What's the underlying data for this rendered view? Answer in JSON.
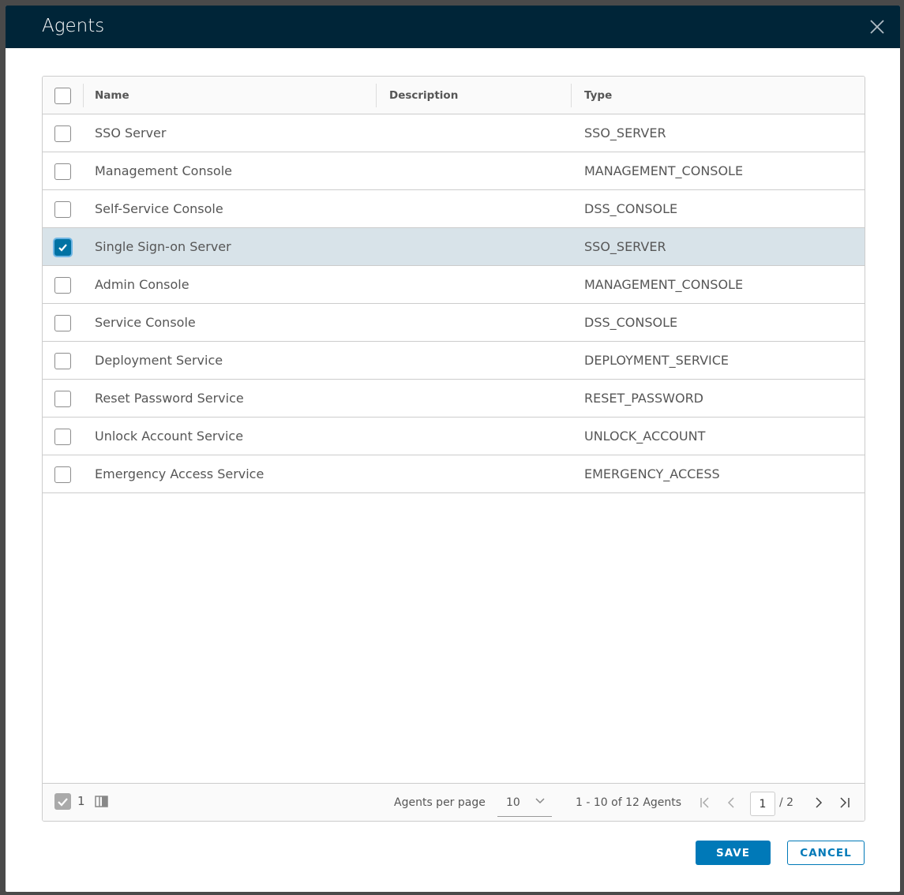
{
  "dialog": {
    "title": "Agents"
  },
  "table": {
    "columns": [
      "Name",
      "Description",
      "Type"
    ],
    "rows": [
      {
        "name": "SSO Server",
        "description": "",
        "type": "SSO_SERVER",
        "selected": false
      },
      {
        "name": "Management Console",
        "description": "",
        "type": "MANAGEMENT_CONSOLE",
        "selected": false
      },
      {
        "name": "Self-Service Console",
        "description": "",
        "type": "DSS_CONSOLE",
        "selected": false
      },
      {
        "name": "Single Sign-on Server",
        "description": "",
        "type": "SSO_SERVER",
        "selected": true
      },
      {
        "name": "Admin Console",
        "description": "",
        "type": "MANAGEMENT_CONSOLE",
        "selected": false
      },
      {
        "name": "Service Console",
        "description": "",
        "type": "DSS_CONSOLE",
        "selected": false
      },
      {
        "name": "Deployment Service",
        "description": "",
        "type": "DEPLOYMENT_SERVICE",
        "selected": false
      },
      {
        "name": "Reset Password Service",
        "description": "",
        "type": "RESET_PASSWORD",
        "selected": false
      },
      {
        "name": "Unlock Account Service",
        "description": "",
        "type": "UNLOCK_ACCOUNT",
        "selected": false
      },
      {
        "name": "Emergency Access Service",
        "description": "",
        "type": "EMERGENCY_ACCESS",
        "selected": false
      }
    ]
  },
  "footer": {
    "selected_count": "1",
    "per_page_label": "Agents per page",
    "per_page": "10",
    "range": "1 - 10 of 12 Agents",
    "page": "1",
    "total_pages": "/ 2"
  },
  "actions": {
    "save": "SAVE",
    "cancel": "CANCEL"
  },
  "colors": {
    "header": "#002538",
    "accent": "#0079b8",
    "selected_row": "#d8e3e9"
  }
}
